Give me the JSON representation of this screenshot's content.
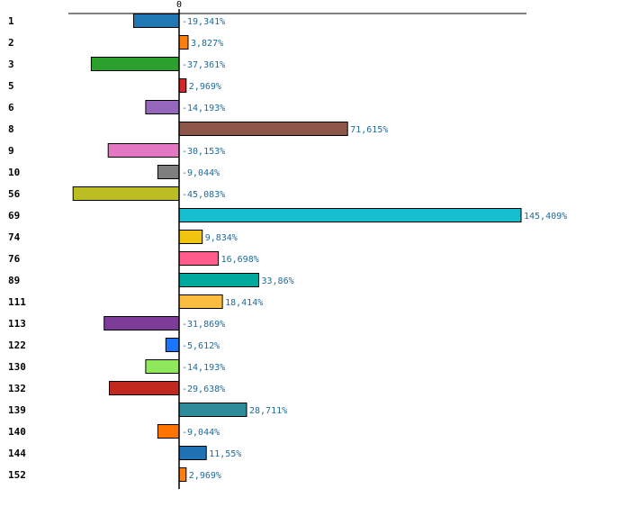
{
  "chart_data": {
    "type": "bar",
    "orientation": "horizontal",
    "zero_tick_label": "0",
    "categories": [
      "1",
      "2",
      "3",
      "5",
      "6",
      "8",
      "9",
      "10",
      "56",
      "69",
      "74",
      "76",
      "89",
      "111",
      "113",
      "122",
      "130",
      "132",
      "139",
      "140",
      "144",
      "152"
    ],
    "values": [
      -19.341,
      3.827,
      -37.361,
      2.969,
      -14.193,
      71.615,
      -30.153,
      -9.044,
      -45.083,
      145.409,
      9.834,
      16.698,
      33.86,
      18.414,
      -31.869,
      -5.612,
      -14.193,
      -29.638,
      28.711,
      -9.044,
      11.55,
      2.969
    ],
    "value_labels": [
      "-19,341%",
      "3,827%",
      "-37,361%",
      "2,969%",
      "-14,193%",
      "71,615%",
      "-30,153%",
      "-9,044%",
      "-45,083%",
      "145,409%",
      "9,834%",
      "16,698%",
      "33,86%",
      "18,414%",
      "-31,869%",
      "-5,612%",
      "-14,193%",
      "-29,638%",
      "28,711%",
      "-9,044%",
      "11,55%",
      "2,969%"
    ],
    "colors": [
      "#1f77b4",
      "#ff7f0e",
      "#2ca02c",
      "#d62728",
      "#9467bd",
      "#8c564b",
      "#e377c2",
      "#7f7f7f",
      "#bcbd22",
      "#17becf",
      "#f1c40f",
      "#ff5b8b",
      "#00a99d",
      "#fbbd3f",
      "#7d3c98",
      "#1a75ff",
      "#8ee85a",
      "#c0291e",
      "#2e8b9a",
      "#ff7300",
      "#2171b5",
      "#ff7f0e"
    ],
    "xlim": [
      -47.2,
      148.5
    ],
    "grid": false,
    "legend": "none",
    "title": "",
    "xlabel": "",
    "ylabel": ""
  }
}
